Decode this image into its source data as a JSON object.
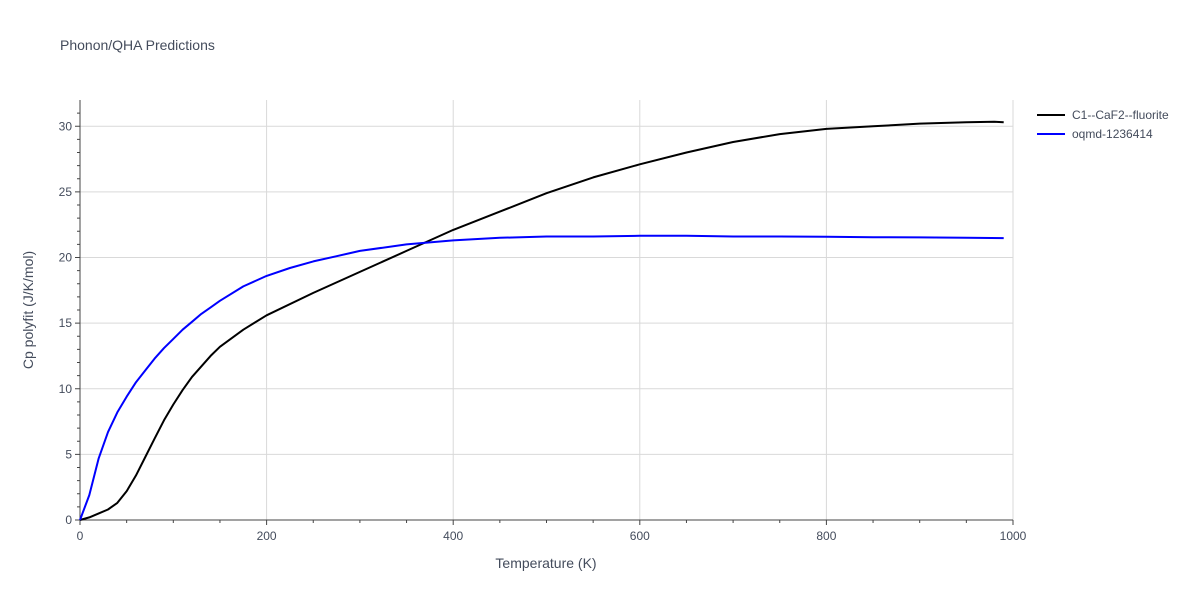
{
  "chart_data": {
    "type": "line",
    "title": "Phonon/QHA Predictions",
    "xlabel": "Temperature (K)",
    "ylabel": "Cp polyfit (J/K/mol)",
    "xlim": [
      0,
      1000
    ],
    "ylim": [
      0,
      32
    ],
    "x_ticks": [
      0,
      200,
      400,
      600,
      800,
      1000
    ],
    "y_ticks": [
      0,
      5,
      10,
      15,
      20,
      25,
      30
    ],
    "grid": true,
    "legend_position": "top-right",
    "series": [
      {
        "name": "C1--CaF2--fluorite",
        "color": "#000000",
        "x": [
          0,
          10,
          20,
          30,
          40,
          50,
          60,
          70,
          80,
          90,
          100,
          110,
          120,
          130,
          140,
          150,
          175,
          200,
          250,
          300,
          350,
          400,
          450,
          500,
          550,
          600,
          650,
          700,
          750,
          800,
          850,
          900,
          950,
          980,
          990
        ],
        "y": [
          0,
          0.2,
          0.5,
          0.8,
          1.3,
          2.2,
          3.4,
          4.8,
          6.2,
          7.6,
          8.8,
          9.9,
          10.9,
          11.7,
          12.5,
          13.2,
          14.5,
          15.6,
          17.3,
          18.9,
          20.5,
          22.1,
          23.5,
          24.9,
          26.1,
          27.1,
          28.0,
          28.8,
          29.4,
          29.8,
          30.0,
          30.2,
          30.3,
          30.35,
          30.3
        ]
      },
      {
        "name": "oqmd-1236414",
        "color": "#0000ff",
        "x": [
          0,
          10,
          20,
          30,
          40,
          50,
          60,
          70,
          80,
          90,
          100,
          110,
          120,
          130,
          140,
          150,
          175,
          200,
          225,
          250,
          275,
          300,
          350,
          400,
          450,
          500,
          550,
          600,
          650,
          700,
          750,
          800,
          850,
          900,
          950,
          990
        ],
        "y": [
          0,
          1.9,
          4.7,
          6.7,
          8.2,
          9.4,
          10.5,
          11.4,
          12.3,
          13.1,
          13.8,
          14.5,
          15.1,
          15.7,
          16.2,
          16.7,
          17.8,
          18.6,
          19.2,
          19.7,
          20.1,
          20.5,
          21.0,
          21.3,
          21.5,
          21.6,
          21.6,
          21.65,
          21.65,
          21.6,
          21.6,
          21.58,
          21.55,
          21.53,
          21.5,
          21.48
        ]
      }
    ]
  }
}
